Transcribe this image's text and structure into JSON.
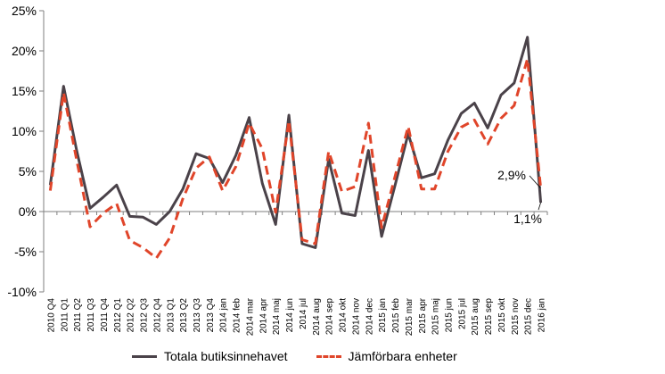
{
  "chart_data": {
    "type": "line",
    "ylim": [
      -10,
      25
    ],
    "yticks": [
      "-10%",
      "-5%",
      "0%",
      "5%",
      "10%",
      "15%",
      "20%",
      "25%"
    ],
    "categories": [
      "2010 Q4",
      "2011 Q1",
      "2011 Q2",
      "2011 Q3",
      "2011 Q4",
      "2012 Q1",
      "2012 Q2",
      "2012 Q3",
      "2012 Q4",
      "2013 Q1",
      "2013 Q2",
      "2013 Q3",
      "2013 Q4",
      "2014 jan",
      "2014 feb",
      "2014 mar",
      "2014 apr",
      "2014 maj",
      "2014 jun",
      "2014 jul",
      "2014 aug",
      "2014 sep",
      "2014 okt",
      "2014 nov",
      "2014 dec",
      "2015 jan",
      "2015 feb",
      "2015 mar",
      "2015 apr",
      "2015 maj",
      "2015 jun",
      "2015 jul",
      "2015 aug",
      "2015 sep",
      "2015 okt",
      "2015 nov",
      "2015 dec",
      "2016 jan"
    ],
    "series": [
      {
        "name": "Totala butiksinnehavet",
        "color": "#4a4249",
        "style": "solid",
        "values": [
          3.3,
          15.6,
          7.5,
          0.4,
          1.8,
          3.3,
          -0.6,
          -0.7,
          -1.6,
          0.0,
          2.8,
          7.2,
          6.6,
          3.6,
          7.0,
          11.7,
          3.5,
          -1.6,
          12.0,
          -4.0,
          -4.5,
          6.5,
          -0.2,
          -0.5,
          7.6,
          -3.1,
          3.2,
          9.7,
          4.2,
          4.7,
          8.9,
          12.2,
          13.5,
          10.4,
          14.5,
          16.0,
          21.7,
          1.1
        ]
      },
      {
        "name": "Jämförbara enheter",
        "color": "#e0452a",
        "style": "dashed",
        "values": [
          2.6,
          14.8,
          6.3,
          -1.9,
          -0.2,
          1.0,
          -3.6,
          -4.5,
          -5.8,
          -3.3,
          1.6,
          5.4,
          6.8,
          2.6,
          5.6,
          11.0,
          7.8,
          -0.1,
          11.3,
          -3.5,
          -4.0,
          7.5,
          2.5,
          3.1,
          11.0,
          -2.0,
          4.3,
          10.6,
          2.8,
          2.8,
          7.5,
          10.5,
          11.4,
          8.4,
          11.6,
          13.2,
          19.0,
          2.9
        ]
      }
    ],
    "annotations": [
      {
        "text": "2,9%",
        "value": 2.9
      },
      {
        "text": "1,1%",
        "value": 1.1
      }
    ],
    "grid": false,
    "legend": "bottom"
  }
}
